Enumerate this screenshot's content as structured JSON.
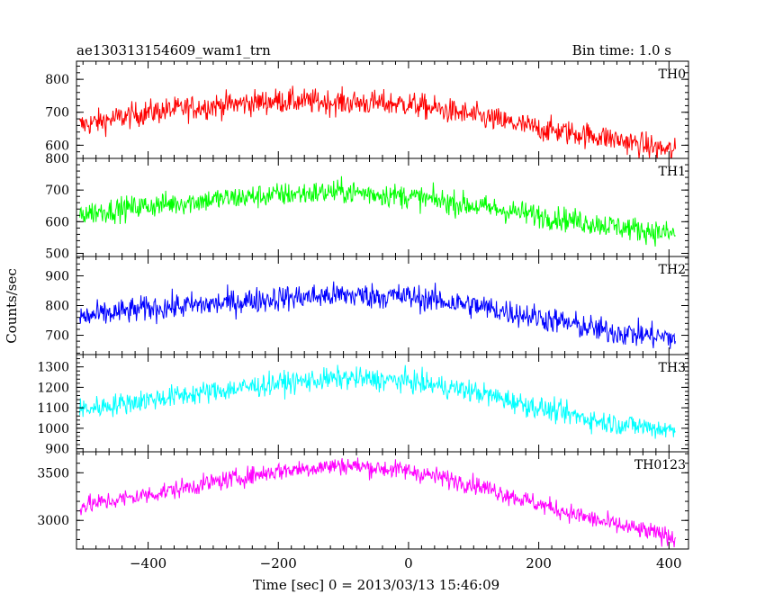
{
  "header": {
    "title": "ae130313154609_wam1_trn",
    "bin_time": "Bin time: 1.0 s"
  },
  "chart_data": {
    "type": "line",
    "title": "ae130313154609_wam1_trn",
    "subtitle": "Bin time: 1.0 s",
    "xlabel": "Time [sec] 0 = 2013/03/13 15:46:09",
    "ylabel": "Counts/sec",
    "xlim": [
      -510,
      430
    ],
    "x_ticks": [
      -400,
      -200,
      0,
      200,
      400
    ],
    "x_start": -505,
    "x_end": 410,
    "bin": 1.0,
    "panels": [
      {
        "name": "TH0",
        "color": "#ff0000",
        "ylim": [
          560,
          855
        ],
        "y_ticks": [
          600,
          700,
          800
        ],
        "knots_x": [
          -505,
          -400,
          -300,
          -200,
          -100,
          0,
          100,
          200,
          300,
          410
        ],
        "knots_y": [
          660,
          700,
          720,
          735,
          730,
          725,
          690,
          650,
          625,
          580
        ],
        "noise": 35
      },
      {
        "name": "TH1",
        "color": "#00ff00",
        "ylim": [
          490,
          800
        ],
        "y_ticks": [
          500,
          600,
          700,
          800
        ],
        "knots_x": [
          -505,
          -400,
          -300,
          -200,
          -100,
          0,
          100,
          200,
          300,
          410
        ],
        "knots_y": [
          625,
          650,
          670,
          685,
          695,
          680,
          650,
          620,
          590,
          560
        ],
        "noise": 35
      },
      {
        "name": "TH2",
        "color": "#0000ff",
        "ylim": [
          635,
          965
        ],
        "y_ticks": [
          700,
          800,
          900
        ],
        "knots_x": [
          -505,
          -400,
          -300,
          -200,
          -100,
          0,
          100,
          200,
          300,
          410
        ],
        "knots_y": [
          760,
          790,
          805,
          825,
          835,
          830,
          800,
          760,
          715,
          690
        ],
        "noise": 40
      },
      {
        "name": "TH3",
        "color": "#00ffff",
        "ylim": [
          885,
          1360
        ],
        "y_ticks": [
          900,
          1000,
          1100,
          1200,
          1300
        ],
        "knots_x": [
          -505,
          -400,
          -300,
          -200,
          -100,
          0,
          100,
          200,
          300,
          410
        ],
        "knots_y": [
          1090,
          1140,
          1180,
          1220,
          1245,
          1230,
          1180,
          1100,
          1030,
          990
        ],
        "noise": 50
      },
      {
        "name": "TH0123",
        "color": "#ff00ff",
        "ylim": [
          2700,
          3720
        ],
        "y_ticks": [
          3000,
          3500
        ],
        "knots_x": [
          -505,
          -400,
          -300,
          -200,
          -100,
          0,
          100,
          200,
          300,
          410
        ],
        "knots_y": [
          3150,
          3270,
          3400,
          3520,
          3580,
          3520,
          3380,
          3170,
          2980,
          2820
        ],
        "noise": 90
      }
    ]
  }
}
